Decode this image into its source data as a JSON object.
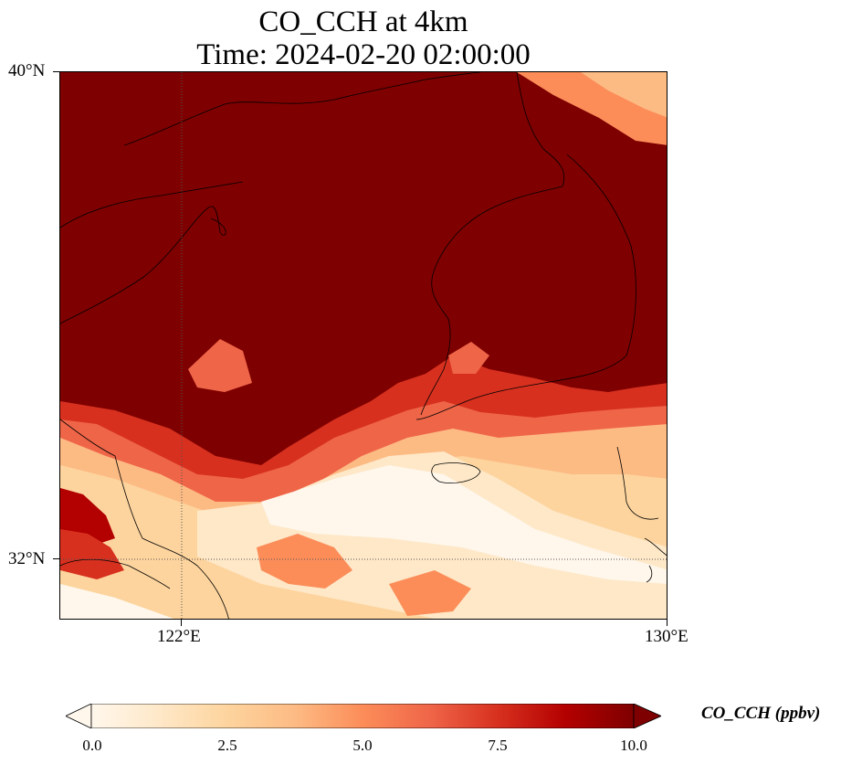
{
  "title": {
    "line1": "CO_CCH at 4km",
    "line2": "Time: 2024-02-20 02:00:00"
  },
  "map": {
    "lat_ticks": [
      "40°N",
      "32°N"
    ],
    "lon_ticks": [
      "122°E",
      "130°E"
    ],
    "gridlines": "dotted"
  },
  "colorbar": {
    "label": "CO_CCH (ppbv)",
    "ticks": [
      "0.0",
      "2.5",
      "5.0",
      "7.5",
      "10.0"
    ],
    "range": [
      0,
      10
    ],
    "colormap": "OrRd",
    "extend": "both",
    "colors": [
      "#fff7ec",
      "#fee8c8",
      "#fdd49e",
      "#fdbb84",
      "#fc8d59",
      "#ef6548",
      "#d7301f",
      "#b30000",
      "#7f0000"
    ]
  }
}
